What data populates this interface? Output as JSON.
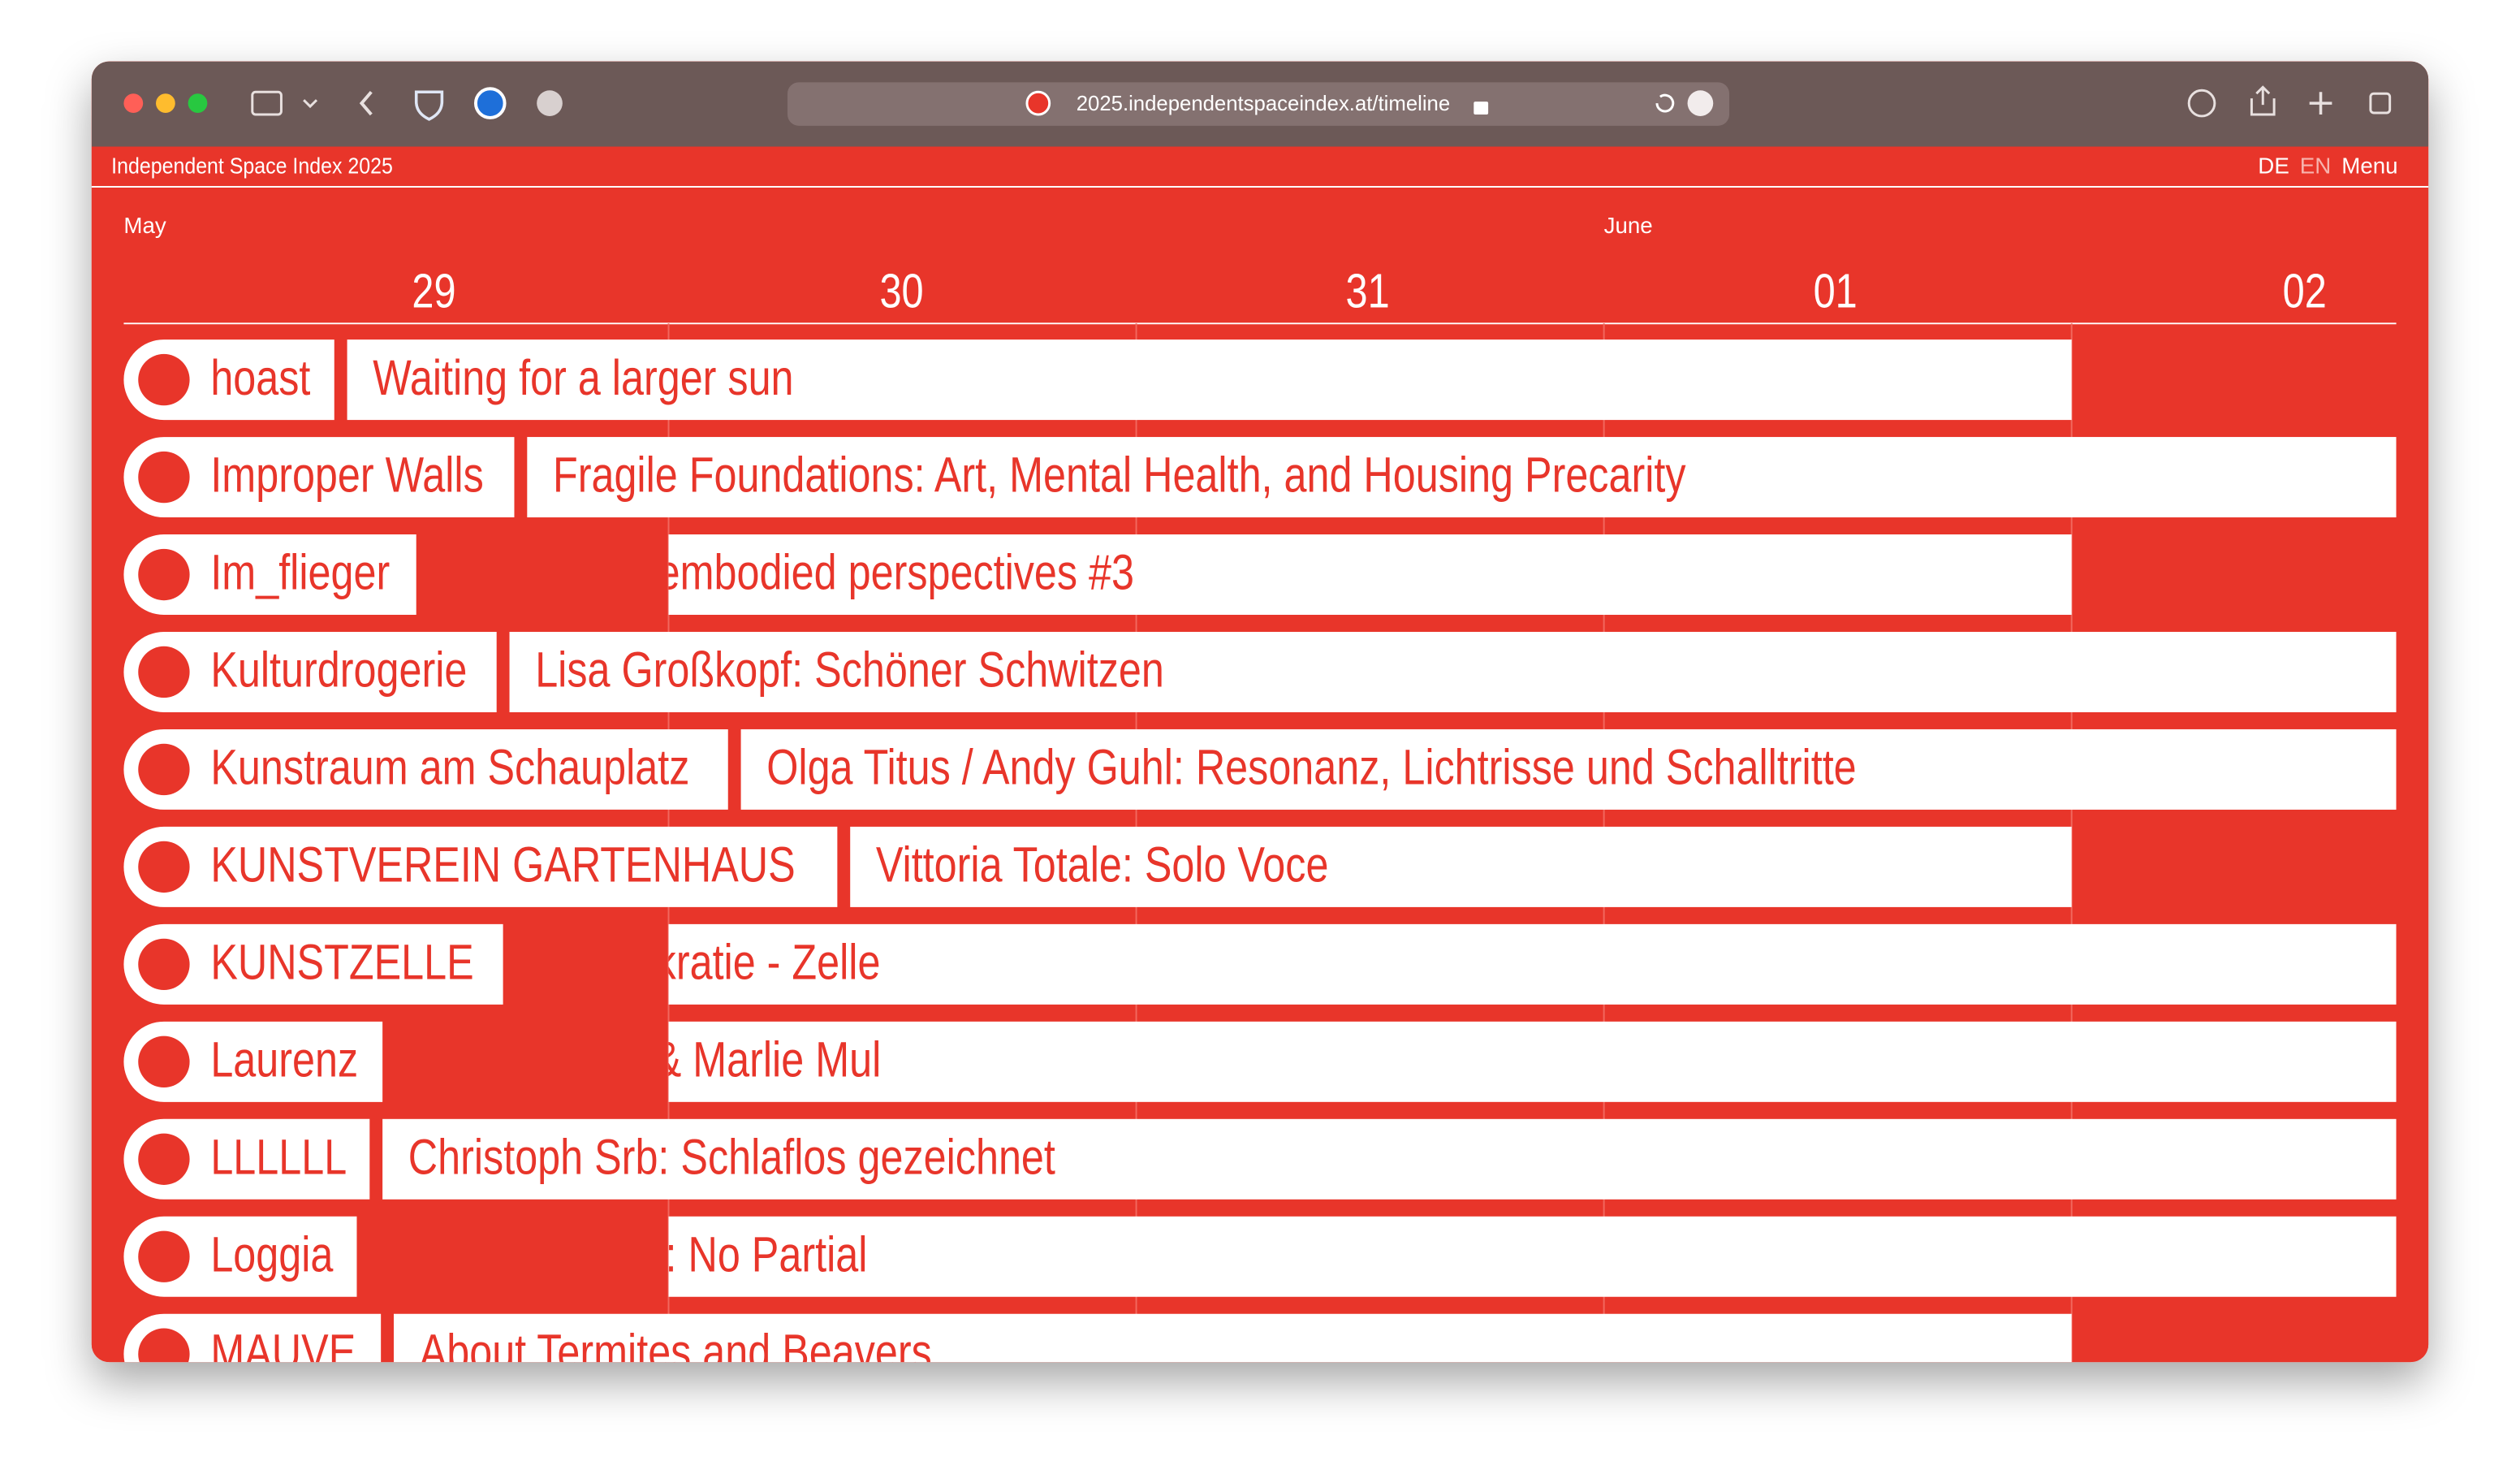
{
  "browser": {
    "url": "2025.independentspaceindex.at/timeline"
  },
  "header": {
    "site_title": "Independent Space Index 2025",
    "languages": [
      "DE",
      "EN"
    ],
    "menu": "Menu"
  },
  "timeline": {
    "months": [
      "May",
      "June"
    ],
    "days": [
      "29",
      "30",
      "31",
      "01",
      "02"
    ],
    "rows": [
      {
        "space": "hoast",
        "event": "Waiting for a larger sun"
      },
      {
        "space": "Improper Walls",
        "event": "Fragile Foundations: Art, Mental Health, and Housing Precarity"
      },
      {
        "space": "Im_flieger",
        "event": "embodied perspectives #3"
      },
      {
        "space": "Kulturdrogerie",
        "event": "Lisa Großkopf: Schöner Schwitzen"
      },
      {
        "space": "Kunstraum am Schauplatz",
        "event": "Olga Titus / Andy Guhl: Resonanz, Lichtrisse und Schalltritte"
      },
      {
        "space": "KUNSTVEREIN GARTENHAUS",
        "event": "Vittoria Totale: Solo Voce"
      },
      {
        "space": "KUNSTZELLE",
        "event": "kratie - Zelle"
      },
      {
        "space": "Laurenz",
        "event": "& Marlie Mul"
      },
      {
        "space": "LLLLLL",
        "event": "Christoph Srb: Schlaflos gezeichnet"
      },
      {
        "space": "Loggia",
        "event": ": No Partial"
      },
      {
        "space": "MAUVE",
        "event": "About Termites and Beavers"
      }
    ]
  }
}
